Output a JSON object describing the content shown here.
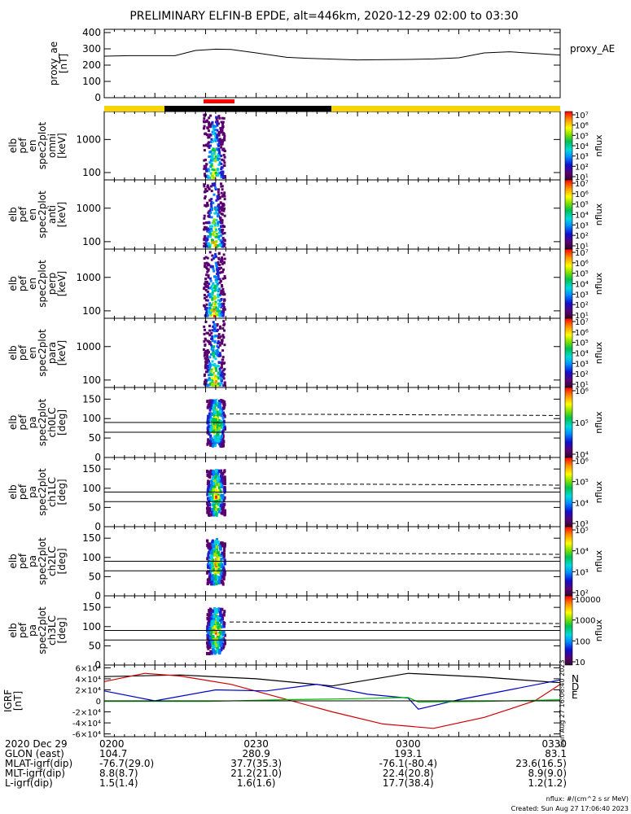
{
  "title": "PRELIMINARY ELFIN-B EPDE, alt=446km, 2020-12-29 02:00 to 03:30",
  "colors": {
    "orbit_sunlit": "#f5d400",
    "orbit_shadow": "#000000",
    "science_zone": "#ff0000",
    "igrf_x": "#000000",
    "igrf_y": "#d00000",
    "igrf_z": "#0000c8",
    "igrf_total": "#00c000"
  },
  "chart_data": [
    {
      "type": "line",
      "name": "proxy_ae",
      "ylabel_lines": [
        "proxy_ae",
        "[nT]"
      ],
      "legend": "proxy_AE",
      "ylim": [
        0,
        420
      ],
      "yticks": [
        "0",
        "100",
        "200",
        "300",
        "400"
      ],
      "ytick_values": [
        0,
        100,
        200,
        300,
        400
      ],
      "x_minutes": [
        0,
        5,
        10,
        14,
        18,
        22,
        25,
        30,
        36,
        40,
        50,
        60,
        65,
        70,
        75,
        80,
        85,
        90
      ],
      "values": [
        255,
        258,
        258,
        258,
        290,
        298,
        296,
        275,
        248,
        242,
        232,
        235,
        238,
        245,
        275,
        282,
        272,
        262
      ]
    },
    {
      "type": "heatmap",
      "name": "spec-omni",
      "ylabel_lines": [
        "elb",
        "pef",
        "en",
        "spec2plot",
        "omni",
        "[keV]"
      ],
      "yscale": "log",
      "yticks": [
        "100",
        "1000"
      ],
      "ytick_values": [
        100,
        1000
      ],
      "ylim": [
        60,
        7000
      ],
      "colorbar": {
        "label": "nflux",
        "scale": "log",
        "ticks": [
          "10¹",
          "10²",
          "10³",
          "10⁴",
          "10⁵",
          "10⁶",
          "10⁷"
        ]
      }
    },
    {
      "type": "heatmap",
      "name": "spec-anti",
      "ylabel_lines": [
        "elb",
        "pef",
        "en",
        "spec2plot",
        "anti",
        "[keV]"
      ],
      "yscale": "log",
      "yticks": [
        "100",
        "1000"
      ],
      "ytick_values": [
        100,
        1000
      ],
      "ylim": [
        60,
        7000
      ],
      "colorbar": {
        "label": "nflux",
        "scale": "log",
        "ticks": [
          "10¹",
          "10²",
          "10³",
          "10⁴",
          "10⁵",
          "10⁶",
          "10⁷"
        ]
      }
    },
    {
      "type": "heatmap",
      "name": "spec-perp",
      "ylabel_lines": [
        "elb",
        "pef",
        "en",
        "spec2plot",
        "perp",
        "[keV]"
      ],
      "yscale": "log",
      "yticks": [
        "100",
        "1000"
      ],
      "ytick_values": [
        100,
        1000
      ],
      "ylim": [
        60,
        7000
      ],
      "colorbar": {
        "label": "nflux",
        "scale": "log",
        "ticks": [
          "10¹",
          "10²",
          "10³",
          "10⁴",
          "10⁵",
          "10⁶",
          "10⁷"
        ]
      }
    },
    {
      "type": "heatmap",
      "name": "spec-para",
      "ylabel_lines": [
        "elb",
        "pef",
        "en",
        "spec2plot",
        "para",
        "[keV]"
      ],
      "yscale": "log",
      "yticks": [
        "100",
        "1000"
      ],
      "ytick_values": [
        100,
        1000
      ],
      "ylim": [
        60,
        7000
      ],
      "colorbar": {
        "label": "nflux",
        "scale": "log",
        "ticks": [
          "10¹",
          "10²",
          "10³",
          "10⁴",
          "10⁵",
          "10⁶",
          "10⁷"
        ]
      }
    },
    {
      "type": "heatmap",
      "name": "pa-ch0",
      "ylabel_lines": [
        "elb",
        "pef",
        "pa",
        "spec2plot",
        "ch0LC",
        "[deg]"
      ],
      "yticks": [
        "0",
        "50",
        "100",
        "150"
      ],
      "ytick_values": [
        0,
        50,
        100,
        150
      ],
      "ylim": [
        0,
        180
      ],
      "colorbar": {
        "label": "nflux",
        "scale": "log",
        "ticks": [
          "10⁴",
          "10⁵",
          "10⁶"
        ]
      }
    },
    {
      "type": "heatmap",
      "name": "pa-ch1",
      "ylabel_lines": [
        "elb",
        "pef",
        "pa",
        "spec2plot",
        "ch1LC",
        "[deg]"
      ],
      "yticks": [
        "0",
        "50",
        "100",
        "150"
      ],
      "ytick_values": [
        0,
        50,
        100,
        150
      ],
      "ylim": [
        0,
        180
      ],
      "colorbar": {
        "label": "nflux",
        "scale": "log",
        "ticks": [
          "10³",
          "10⁴",
          "10⁵",
          "10⁶"
        ]
      }
    },
    {
      "type": "heatmap",
      "name": "pa-ch2",
      "ylabel_lines": [
        "elb",
        "pef",
        "pa",
        "spec2plot",
        "ch2LC",
        "[deg]"
      ],
      "yticks": [
        "0",
        "50",
        "100",
        "150"
      ],
      "ytick_values": [
        0,
        50,
        100,
        150
      ],
      "ylim": [
        0,
        180
      ],
      "colorbar": {
        "label": "nflux",
        "scale": "log",
        "ticks": [
          "10²",
          "10³",
          "10⁴",
          "10⁵"
        ]
      }
    },
    {
      "type": "heatmap",
      "name": "pa-ch3",
      "ylabel_lines": [
        "elb",
        "pef",
        "pa",
        "spec2plot",
        "ch3LC",
        "[deg]"
      ],
      "yticks": [
        "0",
        "50",
        "100",
        "150"
      ],
      "ytick_values": [
        0,
        50,
        100,
        150
      ],
      "ylim": [
        0,
        180
      ],
      "colorbar": {
        "label": "nflux",
        "scale": "log",
        "ticks": [
          "10",
          "100",
          "1000",
          "10000"
        ]
      }
    },
    {
      "type": "line",
      "name": "igrf",
      "ylabel_lines": [
        "IGRF",
        "[nT]"
      ],
      "ylim": [
        -65000,
        65000
      ],
      "yticks": [
        "-6×10⁴",
        "-4×10⁴",
        "-2×10⁴",
        "0",
        "2×10⁴",
        "4×10⁴",
        "6×10⁴"
      ],
      "ytick_values": [
        -60000,
        -40000,
        -20000,
        0,
        20000,
        40000,
        60000
      ],
      "legend": [
        "N",
        "D",
        "E"
      ],
      "series": [
        {
          "color": "#000000",
          "x_minutes": [
            0,
            15,
            30,
            45,
            60,
            75,
            90
          ],
          "values": [
            44000,
            47000,
            40000,
            27000,
            50000,
            43000,
            33000
          ]
        },
        {
          "color": "#d00000",
          "x_minutes": [
            0,
            8,
            15,
            25,
            35,
            45,
            55,
            65,
            75,
            85,
            90
          ],
          "values": [
            35000,
            50000,
            45000,
            30000,
            5000,
            -20000,
            -42000,
            -50000,
            -30000,
            0,
            30000
          ]
        },
        {
          "color": "#0000c8",
          "x_minutes": [
            0,
            10,
            22,
            32,
            42,
            52,
            60,
            62,
            70,
            80,
            90
          ],
          "values": [
            18000,
            0,
            20000,
            18000,
            30000,
            12000,
            5000,
            -15000,
            2000,
            20000,
            38000
          ]
        },
        {
          "color": "#00c000",
          "x_minutes": [
            0,
            20,
            35,
            50,
            60,
            62,
            75,
            90
          ],
          "values": [
            -1000,
            -1000,
            2000,
            4000,
            6000,
            -2000,
            -1000,
            2000
          ]
        }
      ]
    }
  ],
  "x_axis": {
    "row_labels": [
      "2020 Dec 29",
      "GLON (east)",
      "MLAT-igrf(dip)",
      "MLT-igrf(dip)",
      "L-igrf(dip)"
    ],
    "columns": [
      {
        "tick_minutes": 0,
        "values": [
          "0200",
          "104.7",
          "-76.7(29.0)",
          "8.8(8.7)",
          "1.5(1.4)"
        ]
      },
      {
        "tick_minutes": 30,
        "values": [
          "0230",
          "280.9",
          "37.7(35.3)",
          "21.2(21.0)",
          "1.6(1.6)"
        ]
      },
      {
        "tick_minutes": 60,
        "values": [
          "0300",
          "193.1",
          "-76.1(-80.4)",
          "22.4(20.8)",
          "17.7(38.4)"
        ]
      },
      {
        "tick_minutes": 90,
        "values": [
          "0330",
          "83.1",
          "23.6(16.5)",
          "8.9(9.0)",
          "1.2(1.2)"
        ]
      }
    ]
  },
  "footer": {
    "units": "nflux: #/(cm^2 s sr MeV)",
    "created": "Created: Sun Aug 27 17:06:40 2023",
    "vertical_stamp": "Sun Aug 27 16:06:40 2023"
  }
}
